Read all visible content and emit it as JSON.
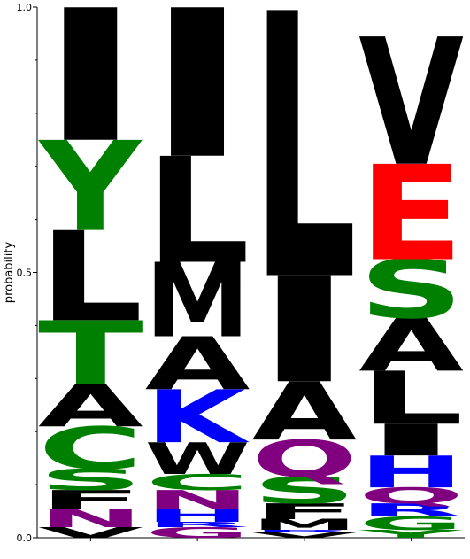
{
  "chart_data": {
    "type": "sequence-logo",
    "ylabel": "probability",
    "ylim": [
      0,
      1
    ],
    "yticks": [
      {
        "value": 0,
        "label": "0.0"
      },
      {
        "value": 0.5,
        "label": "0.5"
      },
      {
        "value": 1,
        "label": "1.0"
      }
    ],
    "colors": {
      "hydrophobic": "#000000",
      "polar": "#008000",
      "basic": "#0000ff",
      "acidic": "#ff0000",
      "amide": "#800080"
    },
    "positions": [
      {
        "residues": [
          {
            "letter": "V",
            "p": 0.02,
            "color": "#000000"
          },
          {
            "letter": "N",
            "p": 0.035,
            "color": "#800080"
          },
          {
            "letter": "F",
            "p": 0.035,
            "color": "#000000"
          },
          {
            "letter": "S",
            "p": 0.04,
            "color": "#008000"
          },
          {
            "letter": "C",
            "p": 0.08,
            "color": "#008000"
          },
          {
            "letter": "A",
            "p": 0.08,
            "color": "#000000"
          },
          {
            "letter": "T",
            "p": 0.12,
            "color": "#008000"
          },
          {
            "letter": "L",
            "p": 0.17,
            "color": "#000000"
          },
          {
            "letter": "Y",
            "p": 0.17,
            "color": "#008000"
          },
          {
            "letter": "I",
            "p": 0.25,
            "color": "#000000"
          }
        ]
      },
      {
        "residues": [
          {
            "letter": "G",
            "p": 0.02,
            "color": "#800080"
          },
          {
            "letter": "R",
            "p": 0.01,
            "color": "#0000ff"
          },
          {
            "letter": "H",
            "p": 0.025,
            "color": "#0000ff"
          },
          {
            "letter": "N",
            "p": 0.035,
            "color": "#800080"
          },
          {
            "letter": "C",
            "p": 0.03,
            "color": "#008000"
          },
          {
            "letter": "W",
            "p": 0.06,
            "color": "#000000"
          },
          {
            "letter": "K",
            "p": 0.1,
            "color": "#0000ff"
          },
          {
            "letter": "A",
            "p": 0.1,
            "color": "#000000"
          },
          {
            "letter": "M",
            "p": 0.14,
            "color": "#000000"
          },
          {
            "letter": "L",
            "p": 0.2,
            "color": "#000000"
          },
          {
            "letter": "I",
            "p": 0.28,
            "color": "#000000"
          }
        ]
      },
      {
        "residues": [
          {
            "letter": "V",
            "p": 0.01,
            "color": "#000000"
          },
          {
            "letter": "R",
            "p": 0.005,
            "color": "#0000ff"
          },
          {
            "letter": "M",
            "p": 0.02,
            "color": "#000000"
          },
          {
            "letter": "F",
            "p": 0.03,
            "color": "#000000"
          },
          {
            "letter": "S",
            "p": 0.05,
            "color": "#008000"
          },
          {
            "letter": "Q",
            "p": 0.07,
            "color": "#800080"
          },
          {
            "letter": "A",
            "p": 0.11,
            "color": "#000000"
          },
          {
            "letter": "I",
            "p": 0.2,
            "color": "#000000"
          },
          {
            "letter": "L",
            "p": 0.5,
            "color": "#000000"
          }
        ]
      },
      {
        "residues": [
          {
            "letter": "Y",
            "p": 0.015,
            "color": "#008000"
          },
          {
            "letter": "G",
            "p": 0.025,
            "color": "#008000"
          },
          {
            "letter": "R",
            "p": 0.025,
            "color": "#0000ff"
          },
          {
            "letter": "Q",
            "p": 0.03,
            "color": "#800080"
          },
          {
            "letter": "H",
            "p": 0.06,
            "color": "#0000ff"
          },
          {
            "letter": "I",
            "p": 0.06,
            "color": "#000000"
          },
          {
            "letter": "L",
            "p": 0.1,
            "color": "#000000"
          },
          {
            "letter": "A",
            "p": 0.1,
            "color": "#000000"
          },
          {
            "letter": "S",
            "p": 0.11,
            "color": "#008000"
          },
          {
            "letter": "E",
            "p": 0.18,
            "color": "#ff0000"
          },
          {
            "letter": "V",
            "p": 0.24,
            "color": "#000000"
          }
        ]
      }
    ]
  }
}
